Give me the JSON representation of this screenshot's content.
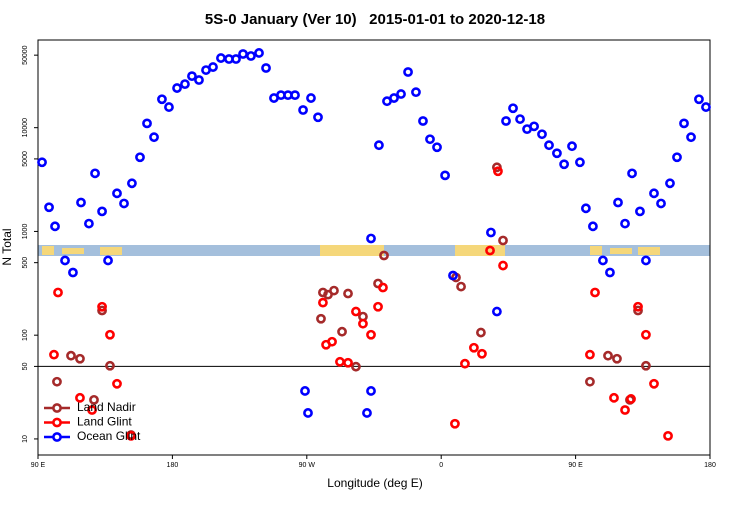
{
  "chart_data": {
    "type": "scatter",
    "title": "5S-0 January (Ver 10)   2015-01-01 to 2020-12-18",
    "x_label": "Longitude (deg E)",
    "y_label": "N Total",
    "xlim": [
      90,
      540
    ],
    "xticks": [
      {
        "value": 90,
        "label": "90 E"
      },
      {
        "value": 180,
        "label": "180"
      },
      {
        "value": 270,
        "label": "90 W"
      },
      {
        "value": 360,
        "label": "0"
      },
      {
        "value": 450,
        "label": "90 E"
      },
      {
        "value": 540,
        "label": "180"
      }
    ],
    "ylim": [
      7,
      70000
    ],
    "yticks": [
      10,
      50,
      100,
      500,
      1000,
      5000,
      10000,
      50000
    ],
    "log_y": true,
    "reference_line": 50,
    "legend": "bottom left",
    "series": [
      {
        "name": "Land Nadir",
        "color": "#a52a2a",
        "x": [
          102.7,
          112.1,
          118.1,
          127.5,
          132.9,
          138.2,
          152.3,
          279.5,
          280.8,
          284.2,
          288.2,
          293.6,
          297.6,
          302.9,
          307.6,
          317.7,
          321.7,
          369.9,
          373.3,
          386.6,
          397.3,
          401.4,
          459.6,
          471.7,
          477.7,
          486.4,
          491.8,
          497.1
        ],
        "values": [
          35.6,
          63.4,
          59.3,
          23.8,
          173,
          50.7,
          10.9,
          144,
          258,
          246,
          269,
          108,
          252,
          49.7,
          151,
          315,
          586,
          360,
          294,
          106,
          4150,
          818,
          35.6,
          63.4,
          59.3,
          23.8,
          173,
          50.7
        ]
      },
      {
        "name": "Land Glint",
        "color": "#ff0000",
        "x": [
          103.4,
          100.7,
          118.1,
          126.2,
          132.9,
          138.2,
          142.9,
          152.3,
          280.8,
          282.9,
          286.9,
          292.2,
          297.6,
          302.9,
          307.6,
          313,
          317.7,
          321,
          369.2,
          375.9,
          381.9,
          387.3,
          392.7,
          398,
          401.4,
          463,
          459.6,
          475.7,
          483.1,
          487.1,
          491.8,
          497.1,
          502.5,
          511.9
        ],
        "values": [
          258,
          64.9,
          24.9,
          19,
          188,
          101,
          34,
          10.7,
          206,
          80.9,
          86.5,
          55.4,
          54.2,
          169,
          129,
          101,
          188,
          288,
          14,
          53.1,
          75.7,
          66.2,
          655,
          3800,
          469,
          258,
          64.9,
          24.9,
          19,
          24.3,
          188,
          101,
          34,
          10.7
        ]
      },
      {
        "name": "Ocean Glint",
        "color": "#0000ff",
        "x": [
          92.7,
          97.4,
          101.4,
          108.1,
          113.4,
          118.8,
          124.1,
          128.2,
          132.9,
          136.9,
          142.9,
          147.6,
          152.9,
          158.3,
          163,
          167.7,
          173,
          177.7,
          183.1,
          188.4,
          193.1,
          197.8,
          202.5,
          207.2,
          212.5,
          217.9,
          222.6,
          227.3,
          232.6,
          238,
          242.7,
          248,
          252.7,
          257.4,
          262.1,
          267.5,
          268.8,
          270.8,
          272.8,
          277.5,
          310.3,
          313,
          313,
          318.3,
          323.7,
          328.4,
          333.1,
          337.8,
          343.1,
          347.8,
          352.5,
          357.2,
          362.6,
          367.9,
          393.3,
          397.3,
          403.4,
          408.1,
          412.8,
          417.5,
          422.2,
          427.5,
          432.2,
          437.5,
          442.3,
          447.6,
          452.9,
          456.9,
          461.6,
          468.3,
          473,
          478.4,
          483.1,
          487.8,
          493.1,
          497.1,
          502.5,
          507.2,
          513.2,
          517.9,
          522.6,
          527.3,
          532.6,
          537.3
        ],
        "values": [
          4640,
          1710,
          1120,
          525,
          402,
          1900,
          1190,
          3630,
          1560,
          525,
          2330,
          1860,
          2910,
          5190,
          11000,
          8100,
          18800,
          15800,
          24100,
          26300,
          31400,
          28800,
          35900,
          38400,
          46900,
          45900,
          45900,
          51300,
          49100,
          52500,
          37600,
          19300,
          20600,
          20600,
          20600,
          14800,
          29,
          17.8,
          19300,
          12600,
          17.8,
          29,
          855,
          6780,
          18000,
          19300,
          21100,
          34400,
          22000,
          11600,
          7740,
          6480,
          3470,
          376,
          977,
          169,
          11600,
          15400,
          12100,
          9690,
          10300,
          8650,
          6780,
          5670,
          4440,
          6630,
          4640,
          1670,
          1120,
          525,
          402,
          1900,
          1190,
          3630,
          1560,
          525,
          2330,
          1860,
          2910,
          5190,
          11000,
          8100,
          18800,
          15800
        ]
      }
    ]
  }
}
